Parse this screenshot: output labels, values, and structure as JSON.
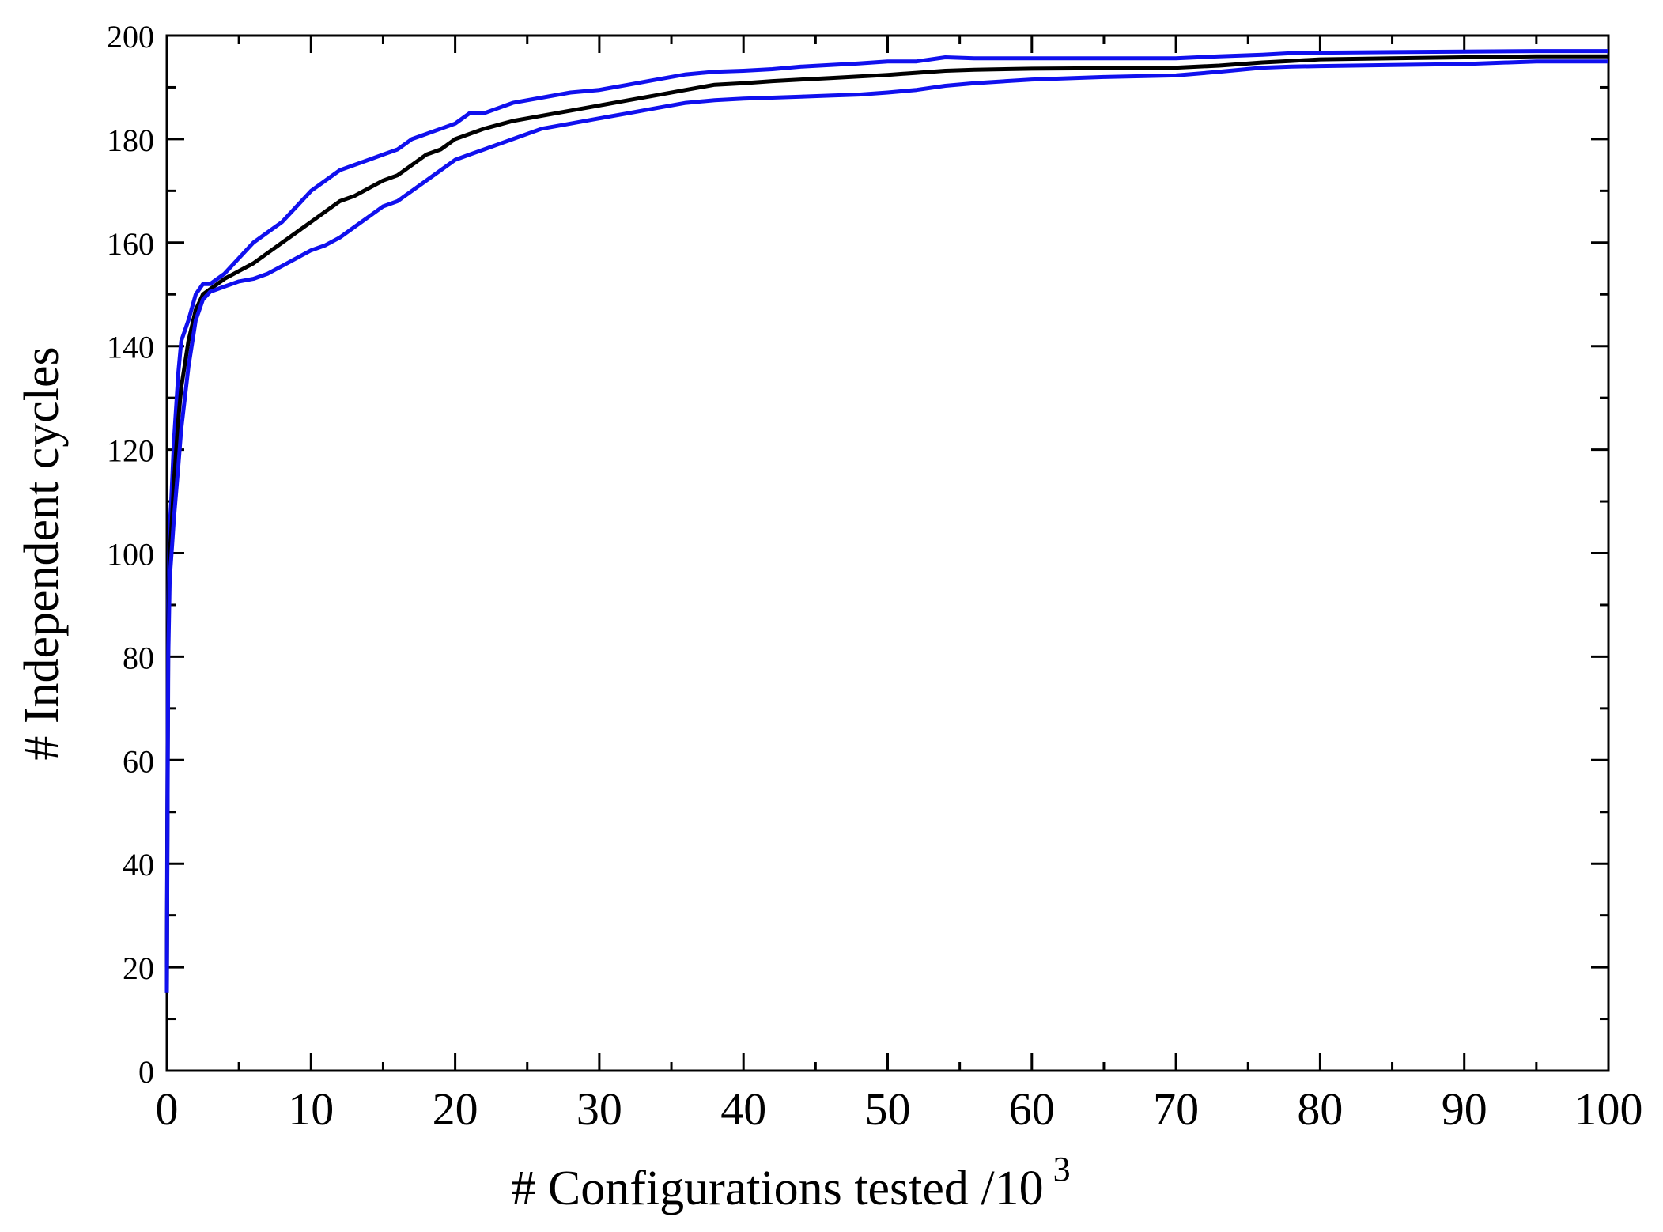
{
  "chart_data": {
    "type": "line",
    "title": "",
    "xlabel": "# Configurations tested /10",
    "xlabel_superscript": "3",
    "ylabel": "# Independent cycles",
    "xlim": [
      0,
      100
    ],
    "ylim": [
      0,
      200
    ],
    "x_ticks": [
      "0",
      "10",
      "20",
      "30",
      "40",
      "50",
      "60",
      "70",
      "80",
      "90",
      "100"
    ],
    "y_ticks": [
      "0",
      "20",
      "40",
      "60",
      "80",
      "100",
      "120",
      "140",
      "160",
      "180",
      "200"
    ],
    "grid": false,
    "legend": "none",
    "series": [
      {
        "color": "#1010ee",
        "role": "upper-bound",
        "x": [
          0,
          0.05,
          0.1,
          0.2,
          0.3,
          0.5,
          0.8,
          1.0,
          1.5,
          2.0,
          2.5,
          3.0,
          4.0,
          5.0,
          6.0,
          7.0,
          8.0,
          9.0,
          10.0,
          11.0,
          12.0,
          13.0,
          14.0,
          15.0,
          16.0,
          17.0,
          18.0,
          19.0,
          20.0,
          21.0,
          22.0,
          24.0,
          26.0,
          28.0,
          30.0,
          32.0,
          34.0,
          36.0,
          38.0,
          40.0,
          42.0,
          44.0,
          46.0,
          48.0,
          50.0,
          52.0,
          54.0,
          56.0,
          60.0,
          65.0,
          70.0,
          73.0,
          76.0,
          78.0,
          80.0,
          85.0,
          90.0,
          95.0,
          100.0
        ],
        "values": [
          20,
          60,
          90,
          105,
          110,
          122,
          135,
          141,
          145,
          150,
          152,
          152,
          154,
          157,
          160,
          162,
          164,
          167,
          170,
          172,
          174,
          175,
          176,
          177,
          178,
          180,
          181,
          182,
          183,
          185,
          185,
          187,
          188,
          189,
          189.5,
          190.5,
          191.5,
          192.5,
          193,
          193.2,
          193.5,
          194,
          194.3,
          194.6,
          195,
          195,
          195.8,
          195.6,
          195.6,
          195.6,
          195.6,
          196,
          196.3,
          196.6,
          196.7,
          196.8,
          196.9,
          197,
          197
        ]
      },
      {
        "color": "#000000",
        "role": "mean",
        "x": [
          0,
          0.05,
          0.1,
          0.2,
          0.3,
          0.5,
          0.8,
          1.0,
          1.5,
          2.0,
          2.5,
          3.0,
          4.0,
          5.0,
          6.0,
          7.0,
          8.0,
          9.0,
          10.0,
          11.0,
          12.0,
          13.0,
          14.0,
          15.0,
          16.0,
          17.0,
          18.0,
          19.0,
          20.0,
          21.0,
          22.0,
          24.0,
          26.0,
          28.0,
          30.0,
          32.0,
          34.0,
          36.0,
          38.0,
          40.0,
          42.0,
          44.0,
          46.0,
          48.0,
          50.0,
          52.0,
          54.0,
          56.0,
          60.0,
          65.0,
          70.0,
          73.0,
          76.0,
          78.0,
          80.0,
          85.0,
          90.0,
          95.0,
          100.0
        ],
        "values": [
          15,
          55,
          85,
          100,
          104,
          114,
          126,
          132,
          141,
          147,
          150,
          151,
          153,
          154.5,
          156,
          158,
          160,
          162,
          164,
          166,
          168,
          169,
          170.5,
          172,
          173,
          175,
          177,
          178,
          180,
          181,
          182,
          183.5,
          184.5,
          185.5,
          186.5,
          187.5,
          188.5,
          189.5,
          190.5,
          190.8,
          191.2,
          191.5,
          191.8,
          192.1,
          192.4,
          192.8,
          193.2,
          193.4,
          193.6,
          193.7,
          193.8,
          194.2,
          194.8,
          195.1,
          195.4,
          195.6,
          195.8,
          196,
          196
        ]
      },
      {
        "color": "#1010ee",
        "role": "lower-bound",
        "x": [
          0,
          0.05,
          0.1,
          0.2,
          0.3,
          0.5,
          0.8,
          1.0,
          1.5,
          2.0,
          2.5,
          3.0,
          4.0,
          5.0,
          6.0,
          7.0,
          8.0,
          9.0,
          10.0,
          11.0,
          12.0,
          13.0,
          14.0,
          15.0,
          16.0,
          17.0,
          18.0,
          19.0,
          20.0,
          21.0,
          22.0,
          24.0,
          26.0,
          28.0,
          30.0,
          32.0,
          34.0,
          36.0,
          38.0,
          40.0,
          42.0,
          44.0,
          46.0,
          48.0,
          50.0,
          52.0,
          54.0,
          56.0,
          60.0,
          65.0,
          70.0,
          73.0,
          76.0,
          78.0,
          80.0,
          85.0,
          90.0,
          95.0,
          100.0
        ],
        "values": [
          15,
          50,
          80,
          95,
          99,
          107,
          117,
          124,
          136,
          145,
          149,
          150.5,
          151.5,
          152.5,
          153,
          154,
          155.5,
          157,
          158.5,
          159.5,
          161,
          163,
          165,
          167,
          168,
          170,
          172,
          174,
          176,
          177,
          178,
          180,
          182,
          183,
          184,
          185,
          186,
          187,
          187.5,
          187.8,
          188,
          188.2,
          188.4,
          188.6,
          189,
          189.5,
          190.3,
          190.8,
          191.5,
          192,
          192.3,
          193,
          193.8,
          194,
          194.1,
          194.3,
          194.5,
          195,
          195
        ]
      }
    ]
  }
}
